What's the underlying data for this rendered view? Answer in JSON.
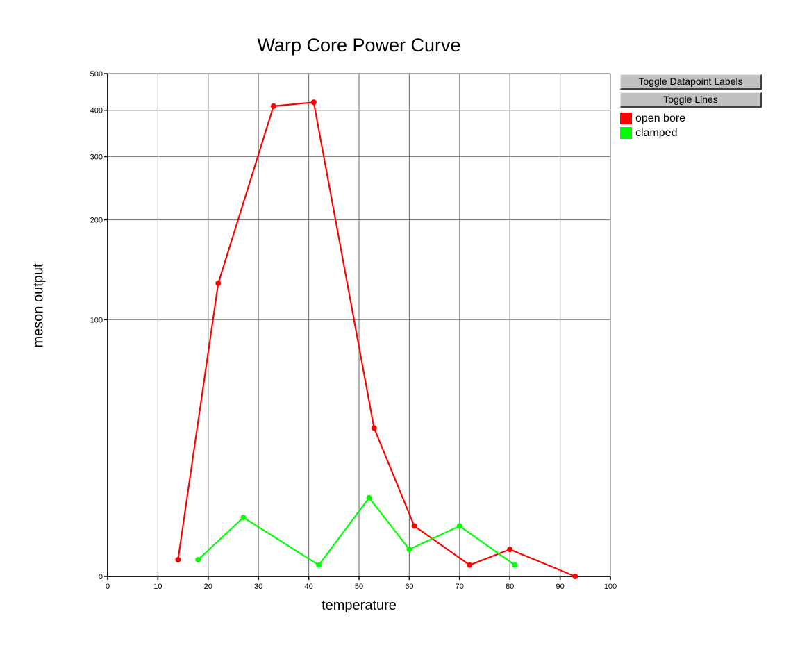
{
  "chart_data": {
    "type": "line",
    "title": "Warp Core Power Curve",
    "xlabel": "temperature",
    "ylabel": "meson output",
    "xlim": [
      0,
      100
    ],
    "x_ticks": [
      "0",
      "10",
      "20",
      "30",
      "40",
      "50",
      "60",
      "70",
      "80",
      "90",
      "100"
    ],
    "y_scale": "log",
    "y_ticks": [
      "0",
      "100",
      "200",
      "300",
      "400",
      "500"
    ],
    "grid": true,
    "legend_position": "right",
    "series": [
      {
        "name": "open bore",
        "color": "#ff0000",
        "x": [
          14,
          22,
          33,
          41,
          53,
          61,
          72,
          80,
          93
        ],
        "y": [
          3,
          130,
          410,
          420,
          40,
          10,
          2,
          5,
          0
        ]
      },
      {
        "name": "clamped",
        "color": "#00ff00",
        "x": [
          18,
          27,
          42,
          52,
          60,
          70,
          81
        ],
        "y": [
          3,
          12,
          2,
          17,
          5,
          10,
          2
        ]
      }
    ]
  },
  "controls": {
    "toggle_labels": "Toggle Datapoint Labels",
    "toggle_lines": "Toggle Lines"
  }
}
